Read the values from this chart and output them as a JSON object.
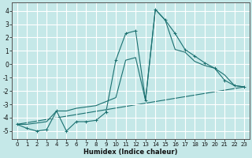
{
  "xlabel": "Humidex (Indice chaleur)",
  "ylabel": "",
  "xlim": [
    -0.5,
    23.5
  ],
  "ylim": [
    -5.6,
    4.6
  ],
  "yticks": [
    -5,
    -4,
    -3,
    -2,
    -1,
    0,
    1,
    2,
    3,
    4
  ],
  "xticks": [
    0,
    1,
    2,
    3,
    4,
    5,
    6,
    7,
    8,
    9,
    10,
    11,
    12,
    13,
    14,
    15,
    16,
    17,
    18,
    19,
    20,
    21,
    22,
    23
  ],
  "bg_color": "#c5e8e8",
  "grid_color": "#ffffff",
  "line_color": "#1a7070",
  "line1_x": [
    0,
    1,
    2,
    3,
    4,
    5,
    6,
    7,
    8,
    9,
    10,
    11,
    12,
    13,
    14,
    15,
    16,
    17,
    18,
    19,
    20,
    21,
    22,
    23
  ],
  "line1_y": [
    -4.5,
    -4.8,
    -5.0,
    -4.9,
    -3.5,
    -5.0,
    -4.3,
    -4.3,
    -4.2,
    -3.6,
    0.3,
    2.3,
    2.5,
    -2.7,
    4.1,
    3.3,
    2.3,
    1.1,
    0.6,
    0.1,
    -0.3,
    -1.2,
    -1.6,
    -1.7
  ],
  "line2_x": [
    0,
    1,
    2,
    3,
    4,
    5,
    6,
    7,
    8,
    9,
    10,
    11,
    12,
    13,
    14,
    15,
    16,
    17,
    18,
    19,
    20,
    21,
    22,
    23
  ],
  "line2_y": [
    -4.5,
    -4.5,
    -4.4,
    -4.3,
    -3.5,
    -3.5,
    -3.3,
    -3.2,
    -3.1,
    -2.8,
    -2.5,
    0.3,
    0.5,
    -2.7,
    4.1,
    3.3,
    1.1,
    0.9,
    0.2,
    -0.1,
    -0.3,
    -0.8,
    -1.6,
    -1.7
  ],
  "line3_x": [
    0,
    23
  ],
  "line3_y": [
    -4.5,
    -1.7
  ]
}
